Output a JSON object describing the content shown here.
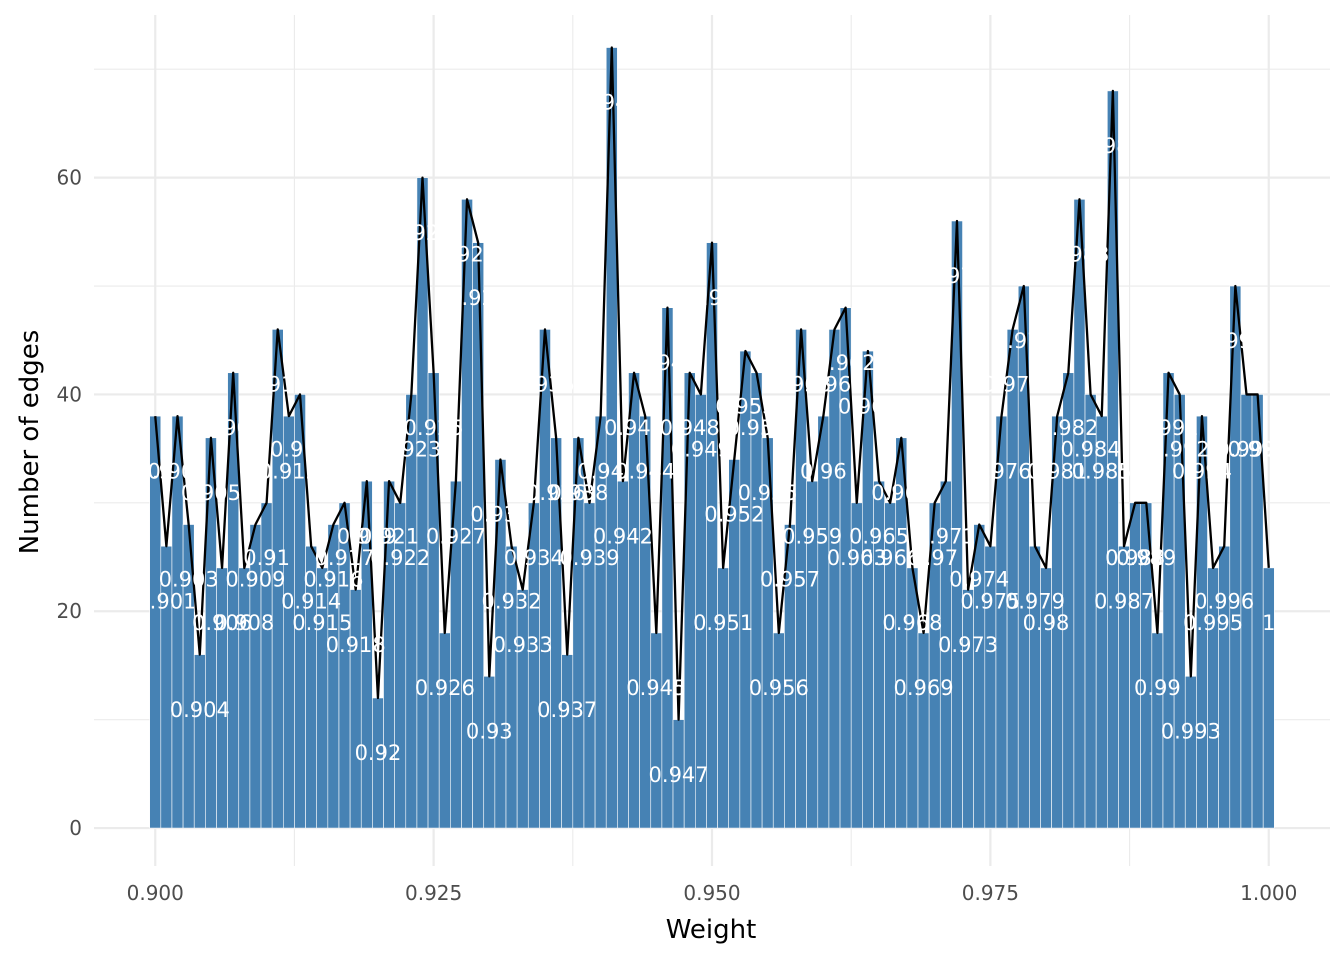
{
  "chart_data": {
    "type": "bar",
    "title": "",
    "xlabel": "Weight",
    "ylabel": "Number of edges",
    "xlim": [
      0.8945,
      1.0055
    ],
    "ylim": [
      -3.5,
      75
    ],
    "x_ticks": [
      0.9,
      0.925,
      0.95,
      0.975,
      1.0
    ],
    "x_tick_labels": [
      "0.900",
      "0.925",
      "0.950",
      "0.975",
      "1.000"
    ],
    "y_ticks": [
      0,
      20,
      40,
      60
    ],
    "y_tick_labels": [
      "0",
      "20",
      "40",
      "60"
    ],
    "grid": true,
    "legend": "none",
    "overlay": "line connecting bar tops",
    "colors": {
      "bar": "#4682b4",
      "bar_outline": "#ffffff",
      "line": "#000000",
      "label": "#ffffff",
      "grid": "#ebebeb"
    },
    "x": [
      0.9,
      0.901,
      0.902,
      0.903,
      0.904,
      0.905,
      0.906,
      0.907,
      0.908,
      0.909,
      0.91,
      0.911,
      0.912,
      0.913,
      0.914,
      0.915,
      0.916,
      0.917,
      0.918,
      0.919,
      0.92,
      0.921,
      0.922,
      0.923,
      0.924,
      0.925,
      0.926,
      0.927,
      0.928,
      0.929,
      0.93,
      0.931,
      0.932,
      0.933,
      0.934,
      0.935,
      0.936,
      0.937,
      0.938,
      0.939,
      0.94,
      0.941,
      0.942,
      0.943,
      0.944,
      0.945,
      0.946,
      0.947,
      0.948,
      0.949,
      0.95,
      0.951,
      0.952,
      0.953,
      0.954,
      0.955,
      0.956,
      0.957,
      0.958,
      0.959,
      0.96,
      0.961,
      0.962,
      0.963,
      0.964,
      0.965,
      0.966,
      0.967,
      0.968,
      0.969,
      0.97,
      0.971,
      0.972,
      0.973,
      0.974,
      0.975,
      0.976,
      0.977,
      0.978,
      0.979,
      0.98,
      0.981,
      0.982,
      0.983,
      0.984,
      0.985,
      0.986,
      0.987,
      0.988,
      0.989,
      0.99,
      0.991,
      0.992,
      0.993,
      0.994,
      0.995,
      0.996,
      0.997,
      0.998,
      0.999,
      1.0
    ],
    "values": [
      38,
      26,
      38,
      28,
      16,
      36,
      24,
      42,
      24,
      28,
      30,
      46,
      38,
      40,
      26,
      24,
      28,
      30,
      22,
      32,
      12,
      32,
      30,
      40,
      60,
      42,
      18,
      32,
      58,
      54,
      14,
      34,
      26,
      22,
      30,
      46,
      36,
      16,
      36,
      30,
      38,
      72,
      32,
      42,
      38,
      18,
      48,
      10,
      42,
      40,
      54,
      24,
      34,
      44,
      42,
      36,
      18,
      28,
      46,
      32,
      38,
      46,
      48,
      30,
      44,
      32,
      30,
      36,
      24,
      18,
      30,
      32,
      56,
      22,
      28,
      26,
      38,
      46,
      50,
      26,
      24,
      38,
      42,
      58,
      40,
      38,
      68,
      26,
      30,
      30,
      18,
      42,
      40,
      14,
      38,
      24,
      26,
      50,
      40,
      40,
      24
    ],
    "bar_labels": [
      "0.9",
      "0.901",
      "0.902",
      "0.903",
      "0.904",
      "0.905",
      "0.906",
      "0.907",
      "0.908",
      "0.909",
      "0.91",
      "0.911",
      "0.912",
      "0.913",
      "0.914",
      "0.915",
      "0.916",
      "0.917",
      "0.918",
      "0.919",
      "0.92",
      "0.921",
      "0.922",
      "0.923",
      "0.924",
      "0.925",
      "0.926",
      "0.927",
      "0.928",
      "0.929",
      "0.93",
      "0.931",
      "0.932",
      "0.933",
      "0.934",
      "0.935",
      "0.936",
      "0.937",
      "0.938",
      "0.939",
      "0.94",
      "0.941",
      "0.942",
      "0.943",
      "0.944",
      "0.945",
      "0.946",
      "0.947",
      "0.948",
      "0.949",
      "0.95",
      "0.951",
      "0.952",
      "0.953",
      "0.954",
      "0.955",
      "0.956",
      "0.957",
      "0.958",
      "0.959",
      "0.96",
      "0.961",
      "0.962",
      "0.963",
      "0.964",
      "0.965",
      "0.966",
      "0.967",
      "0.968",
      "0.969",
      "0.97",
      "0.971",
      "0.972",
      "0.973",
      "0.974",
      "0.975",
      "0.976",
      "0.977",
      "0.978",
      "0.979",
      "0.98",
      "0.981",
      "0.982",
      "0.983",
      "0.984",
      "0.985",
      "0.986",
      "0.987",
      "0.988",
      "0.989",
      "0.99",
      "0.991",
      "0.992",
      "0.993",
      "0.994",
      "0.995",
      "0.996",
      "0.997",
      "0.998",
      "0.999",
      "1"
    ]
  }
}
